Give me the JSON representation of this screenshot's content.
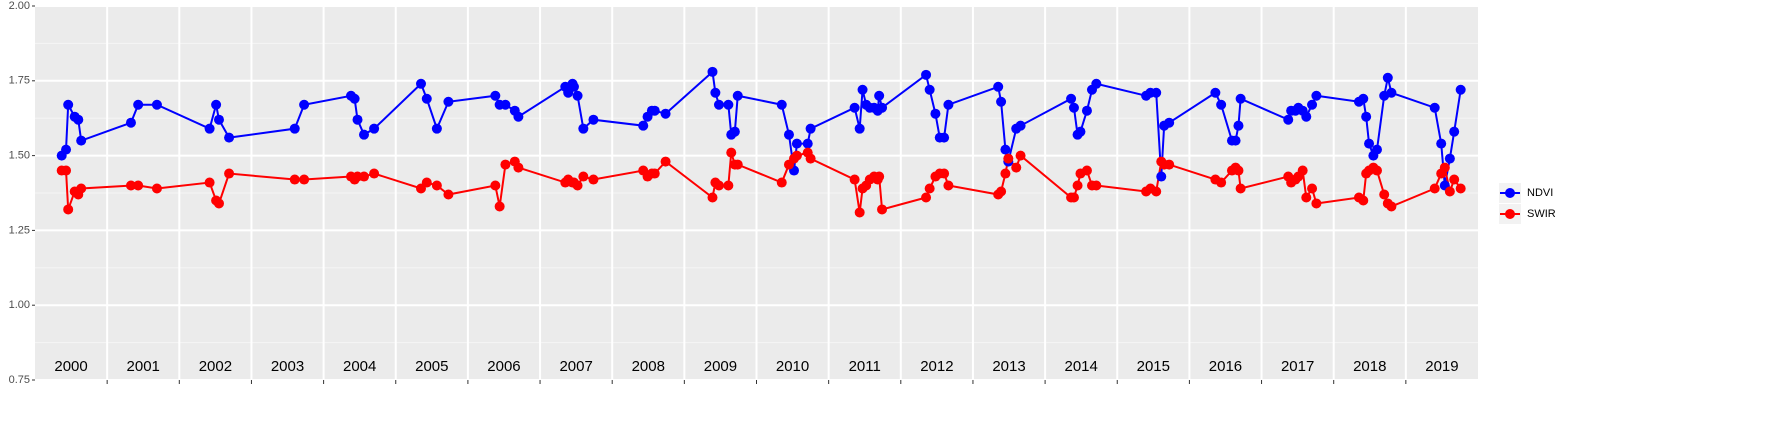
{
  "chart_data": {
    "type": "line",
    "x": [
      2000.37,
      2000.43,
      2000.46,
      2000.55,
      2000.6,
      2000.64,
      2001.33,
      2001.43,
      2001.69,
      2002.42,
      2002.51,
      2002.55,
      2002.69,
      2003.6,
      2003.73,
      2004.38,
      2004.43,
      2004.47,
      2004.56,
      2004.7,
      2005.35,
      2005.43,
      2005.57,
      2005.73,
      2006.38,
      2006.44,
      2006.52,
      2006.65,
      2006.7,
      2007.35,
      2007.39,
      2007.45,
      2007.47,
      2007.52,
      2007.6,
      2007.74,
      2008.43,
      2008.49,
      2008.55,
      2008.59,
      2008.74,
      2009.39,
      2009.43,
      2009.48,
      2009.61,
      2009.65,
      2009.7,
      2009.74,
      2010.35,
      2010.45,
      2010.52,
      2010.56,
      2010.71,
      2010.75,
      2011.36,
      2011.43,
      2011.47,
      2011.52,
      2011.57,
      2011.63,
      2011.68,
      2011.7,
      2011.74,
      2012.35,
      2012.4,
      2012.48,
      2012.54,
      2012.6,
      2012.66,
      2013.35,
      2013.39,
      2013.45,
      2013.49,
      2013.6,
      2013.66,
      2014.36,
      2014.4,
      2014.45,
      2014.49,
      2014.58,
      2014.65,
      2014.71,
      2015.4,
      2015.46,
      2015.54,
      2015.61,
      2015.65,
      2015.72,
      2016.36,
      2016.44,
      2016.59,
      2016.64,
      2016.68,
      2016.71,
      2017.37,
      2017.41,
      2017.47,
      2017.51,
      2017.57,
      2017.62,
      2017.7,
      2017.76,
      2018.35,
      2018.41,
      2018.45,
      2018.49,
      2018.55,
      2018.6,
      2018.7,
      2018.75,
      2018.8,
      2019.4,
      2019.49,
      2019.54,
      2019.61,
      2019.67,
      2019.76
    ],
    "series": [
      {
        "name": "NDVI",
        "color": "#0000ff",
        "values": [
          1.5,
          1.52,
          1.67,
          1.63,
          1.62,
          1.55,
          1.61,
          1.67,
          1.67,
          1.59,
          1.67,
          1.62,
          1.56,
          1.59,
          1.67,
          1.7,
          1.69,
          1.62,
          1.57,
          1.59,
          1.74,
          1.69,
          1.59,
          1.68,
          1.7,
          1.67,
          1.67,
          1.65,
          1.63,
          1.73,
          1.71,
          1.74,
          1.73,
          1.7,
          1.59,
          1.62,
          1.6,
          1.63,
          1.65,
          1.65,
          1.64,
          1.78,
          1.71,
          1.67,
          1.67,
          1.57,
          1.58,
          1.7,
          1.67,
          1.57,
          1.45,
          1.54,
          1.54,
          1.59,
          1.66,
          1.59,
          1.72,
          1.67,
          1.66,
          1.66,
          1.65,
          1.7,
          1.66,
          1.77,
          1.72,
          1.64,
          1.56,
          1.56,
          1.67,
          1.73,
          1.68,
          1.52,
          1.48,
          1.59,
          1.6,
          1.69,
          1.66,
          1.57,
          1.58,
          1.65,
          1.72,
          1.74,
          1.7,
          1.71,
          1.71,
          1.43,
          1.6,
          1.61,
          1.71,
          1.67,
          1.55,
          1.55,
          1.6,
          1.69,
          1.62,
          1.65,
          1.65,
          1.66,
          1.65,
          1.63,
          1.67,
          1.7,
          1.68,
          1.69,
          1.63,
          1.54,
          1.5,
          1.52,
          1.7,
          1.76,
          1.71,
          1.66,
          1.54,
          1.4,
          1.49,
          1.58,
          1.72
        ]
      },
      {
        "name": "SWIR",
        "color": "#ff0000",
        "values": [
          1.45,
          1.45,
          1.32,
          1.38,
          1.37,
          1.39,
          1.4,
          1.4,
          1.39,
          1.41,
          1.35,
          1.34,
          1.44,
          1.42,
          1.42,
          1.43,
          1.42,
          1.43,
          1.43,
          1.44,
          1.39,
          1.41,
          1.4,
          1.37,
          1.4,
          1.33,
          1.47,
          1.48,
          1.46,
          1.41,
          1.42,
          1.41,
          1.41,
          1.4,
          1.43,
          1.42,
          1.45,
          1.43,
          1.44,
          1.44,
          1.48,
          1.36,
          1.41,
          1.4,
          1.4,
          1.51,
          1.47,
          1.47,
          1.41,
          1.47,
          1.49,
          1.5,
          1.51,
          1.49,
          1.42,
          1.31,
          1.39,
          1.4,
          1.42,
          1.43,
          1.42,
          1.43,
          1.32,
          1.36,
          1.39,
          1.43,
          1.44,
          1.44,
          1.4,
          1.37,
          1.38,
          1.44,
          1.49,
          1.46,
          1.5,
          1.36,
          1.36,
          1.4,
          1.44,
          1.45,
          1.4,
          1.4,
          1.38,
          1.39,
          1.38,
          1.48,
          1.47,
          1.47,
          1.42,
          1.41,
          1.45,
          1.46,
          1.45,
          1.39,
          1.43,
          1.41,
          1.42,
          1.43,
          1.45,
          1.36,
          1.39,
          1.34,
          1.36,
          1.35,
          1.44,
          1.45,
          1.46,
          1.45,
          1.37,
          1.34,
          1.33,
          1.39,
          1.44,
          1.46,
          1.38,
          1.42,
          1.39
        ]
      }
    ],
    "xlim": [
      2000,
      2020
    ],
    "xticks": [
      {
        "value": 2000.5,
        "label": "2000"
      },
      {
        "value": 2001.5,
        "label": "2001"
      },
      {
        "value": 2002.5,
        "label": "2002"
      },
      {
        "value": 2003.5,
        "label": "2003"
      },
      {
        "value": 2004.5,
        "label": "2004"
      },
      {
        "value": 2005.5,
        "label": "2005"
      },
      {
        "value": 2006.5,
        "label": "2006"
      },
      {
        "value": 2007.5,
        "label": "2007"
      },
      {
        "value": 2008.5,
        "label": "2008"
      },
      {
        "value": 2009.5,
        "label": "2009"
      },
      {
        "value": 2010.5,
        "label": "2010"
      },
      {
        "value": 2011.5,
        "label": "2011"
      },
      {
        "value": 2012.5,
        "label": "2012"
      },
      {
        "value": 2013.5,
        "label": "2013"
      },
      {
        "value": 2014.5,
        "label": "2014"
      },
      {
        "value": 2015.5,
        "label": "2015"
      },
      {
        "value": 2016.5,
        "label": "2016"
      },
      {
        "value": 2017.5,
        "label": "2017"
      },
      {
        "value": 2018.5,
        "label": "2018"
      },
      {
        "value": 2019.5,
        "label": "2019"
      }
    ],
    "xbreaks": [
      2001,
      2002,
      2003,
      2004,
      2005,
      2006,
      2007,
      2008,
      2009,
      2010,
      2011,
      2012,
      2013,
      2014,
      2015,
      2016,
      2017,
      2018,
      2019
    ],
    "ylim": [
      0.75,
      2.0
    ],
    "yticks": [
      {
        "value": 0.75,
        "label": "0.75"
      },
      {
        "value": 1.0,
        "label": "1.00"
      },
      {
        "value": 1.25,
        "label": "1.25"
      },
      {
        "value": 1.5,
        "label": "1.50"
      },
      {
        "value": 1.75,
        "label": "1.75"
      },
      {
        "value": 2.0,
        "label": "2.00"
      }
    ],
    "yminor": [
      0.875,
      1.125,
      1.375,
      1.625,
      1.875
    ],
    "grid": true,
    "legend": "right"
  }
}
